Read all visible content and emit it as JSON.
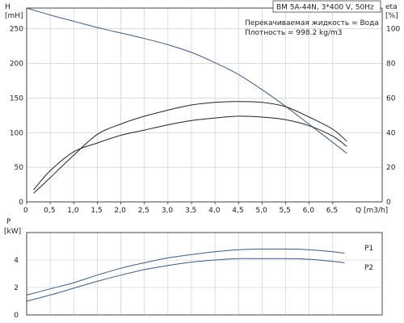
{
  "chart_data": [
    {
      "type": "line",
      "title": "BM 5A-44N, 3*400 V, 50Hz",
      "annotations": [
        "Перекачиваемая жидкость = Вода",
        "Плотность = 998.2 kg/m3"
      ],
      "x_tick_labels": [
        "0",
        "0,5",
        "1,0",
        "1,5",
        "2,0",
        "2,5",
        "3,0",
        "3,5",
        "4,0",
        "4,5",
        "5,0",
        "5,5",
        "6,0",
        "6,5"
      ],
      "x_ticks": [
        0,
        0.5,
        1,
        1.5,
        2,
        2.5,
        3,
        3.5,
        4,
        4.5,
        5,
        5.5,
        6,
        6.5
      ],
      "xlabel": "Q [m3/h]",
      "xlim": [
        0,
        7.55
      ],
      "ylabel": "H",
      "ylabel_unit": "[mH]",
      "y_ticks": [
        0,
        50,
        100,
        150,
        200,
        250
      ],
      "ylim": [
        0,
        280
      ],
      "y2label": "eta",
      "y2label_unit": "[%]",
      "y2_ticks": [
        0,
        20,
        40,
        60,
        80,
        100
      ],
      "y2lim": [
        0,
        112
      ],
      "grid": true,
      "series": [
        {
          "axis": "left",
          "color": "#3d5a80",
          "x": [
            0,
            0.5,
            1,
            1.5,
            2,
            2.5,
            3,
            3.5,
            4,
            4.5,
            5,
            5.5,
            6,
            6.5,
            6.8
          ],
          "y": [
            280,
            270,
            261,
            252,
            244,
            236,
            227,
            216,
            201,
            184,
            162,
            138,
            112,
            86,
            70
          ]
        },
        {
          "axis": "right",
          "color": "#222222",
          "x": [
            0.15,
            0.5,
            1,
            1.5,
            2,
            2.5,
            3,
            3.5,
            4,
            4.5,
            5,
            5.5,
            6,
            6.5,
            6.8
          ],
          "y": [
            5,
            14,
            27,
            39,
            45,
            49.5,
            53,
            56,
            57.5,
            58,
            57.5,
            55,
            49,
            42,
            35
          ]
        },
        {
          "axis": "right",
          "color": "#222222",
          "x": [
            0.15,
            0.5,
            1,
            1.5,
            2,
            2.5,
            3,
            3.5,
            4,
            4.5,
            5,
            5.5,
            6,
            6.5,
            6.8
          ],
          "y": [
            7,
            18,
            29,
            34,
            38.5,
            41.5,
            44.5,
            47,
            48.5,
            49.5,
            49,
            47.5,
            44,
            38,
            32
          ]
        }
      ]
    },
    {
      "type": "line",
      "title": "",
      "ylabel": "P",
      "ylabel_unit": "[kW]",
      "xlim": [
        0,
        7.55
      ],
      "y_ticks": [
        0,
        2,
        4
      ],
      "ylim": [
        0,
        6
      ],
      "grid": true,
      "series": [
        {
          "name": "P1",
          "color": "#3d5a80",
          "x": [
            0,
            0.5,
            1,
            1.5,
            2,
            2.5,
            3,
            3.5,
            4,
            4.5,
            5,
            5.5,
            6,
            6.5,
            6.75
          ],
          "y": [
            1.45,
            1.9,
            2.35,
            2.9,
            3.4,
            3.8,
            4.15,
            4.4,
            4.6,
            4.75,
            4.8,
            4.8,
            4.75,
            4.6,
            4.5
          ]
        },
        {
          "name": "P2",
          "color": "#3d5a80",
          "x": [
            0,
            0.5,
            1,
            1.5,
            2,
            2.5,
            3,
            3.5,
            4,
            4.5,
            5,
            5.5,
            6,
            6.5,
            6.75
          ],
          "y": [
            1.0,
            1.45,
            1.95,
            2.45,
            2.9,
            3.3,
            3.6,
            3.85,
            4.0,
            4.1,
            4.1,
            4.1,
            4.05,
            3.9,
            3.8
          ]
        }
      ]
    }
  ]
}
